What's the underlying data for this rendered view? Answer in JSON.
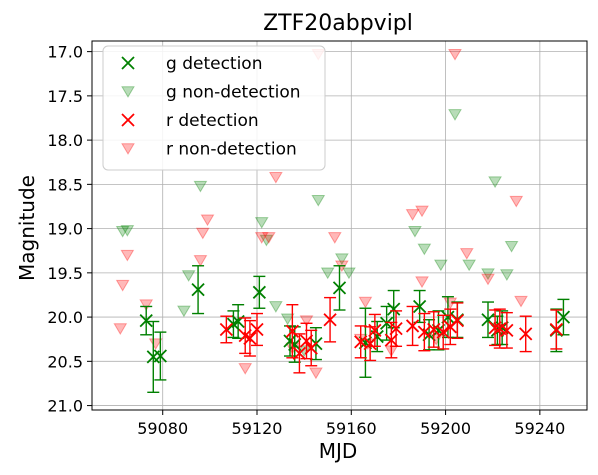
{
  "chart_data": {
    "type": "scatter",
    "title": "ZTF20abpvipl",
    "xlabel": "MJD",
    "ylabel": "Magnitude",
    "xlim": [
      59050,
      59260
    ],
    "ylim": [
      21.05,
      16.88
    ],
    "y_inverted": true,
    "grid": true,
    "legend_position": "top-left",
    "x_ticks": [
      59080,
      59120,
      59160,
      59200,
      59240
    ],
    "y_ticks": [
      17.0,
      17.5,
      18.0,
      18.5,
      19.0,
      19.5,
      20.0,
      20.5,
      21.0
    ],
    "colors": {
      "g": "#008000",
      "r": "#ff0000"
    },
    "legend": [
      {
        "label": "g detection",
        "marker": "x",
        "color": "#008000",
        "alpha": 1
      },
      {
        "label": "g non-detection",
        "marker": "triangle-down",
        "color": "#008000",
        "alpha": 0.25
      },
      {
        "label": "r detection",
        "marker": "x",
        "color": "#ff0000",
        "alpha": 1
      },
      {
        "label": "r non-detection",
        "marker": "triangle-down",
        "color": "#ff0000",
        "alpha": 0.25
      }
    ],
    "series": [
      {
        "name": "g detection",
        "band": "g",
        "kind": "detection",
        "points": [
          {
            "x": 59073,
            "y": 20.04,
            "err": 0.16
          },
          {
            "x": 59076,
            "y": 20.45,
            "err": 0.4
          },
          {
            "x": 59079,
            "y": 20.44,
            "err": 0.27
          },
          {
            "x": 59095,
            "y": 19.69,
            "err": 0.27
          },
          {
            "x": 59110,
            "y": 20.08,
            "err": 0.15
          },
          {
            "x": 59112,
            "y": 20.05,
            "err": 0.19
          },
          {
            "x": 59121,
            "y": 19.72,
            "err": 0.18
          },
          {
            "x": 59134,
            "y": 20.27,
            "err": 0.17
          },
          {
            "x": 59136,
            "y": 20.31,
            "err": 0.2
          },
          {
            "x": 59145,
            "y": 20.3,
            "err": 0.18
          },
          {
            "x": 59155,
            "y": 19.67,
            "err": 0.25
          },
          {
            "x": 59166,
            "y": 20.29,
            "err": 0.39
          },
          {
            "x": 59171,
            "y": 20.22,
            "err": 0.17
          },
          {
            "x": 59175,
            "y": 20.07,
            "err": 0.19
          },
          {
            "x": 59178,
            "y": 19.91,
            "err": 0.21
          },
          {
            "x": 59189,
            "y": 19.88,
            "err": 0.18
          },
          {
            "x": 59193,
            "y": 20.2,
            "err": 0.17
          },
          {
            "x": 59197,
            "y": 20.15,
            "err": 0.22
          },
          {
            "x": 59201,
            "y": 20.0,
            "err": 0.23
          },
          {
            "x": 59205,
            "y": 20.03,
            "err": 0.2
          },
          {
            "x": 59218,
            "y": 20.03,
            "err": 0.2
          },
          {
            "x": 59222,
            "y": 20.15,
            "err": 0.16
          },
          {
            "x": 59224,
            "y": 20.12,
            "err": 0.19
          },
          {
            "x": 59247,
            "y": 20.15,
            "err": 0.24
          },
          {
            "x": 59250,
            "y": 20.0,
            "err": 0.2
          }
        ]
      },
      {
        "name": "g non-detection",
        "band": "g",
        "kind": "non-detection",
        "points": [
          {
            "x": 59063,
            "y": 19.03
          },
          {
            "x": 59065,
            "y": 19.02
          },
          {
            "x": 59089,
            "y": 19.93
          },
          {
            "x": 59091,
            "y": 19.53
          },
          {
            "x": 59096,
            "y": 18.52
          },
          {
            "x": 59122,
            "y": 18.93
          },
          {
            "x": 59124,
            "y": 19.13
          },
          {
            "x": 59128,
            "y": 19.88
          },
          {
            "x": 59133,
            "y": 20.02
          },
          {
            "x": 59140,
            "y": 20.38
          },
          {
            "x": 59146,
            "y": 18.68
          },
          {
            "x": 59150,
            "y": 19.5
          },
          {
            "x": 59156,
            "y": 19.34
          },
          {
            "x": 59159,
            "y": 19.5
          },
          {
            "x": 59187,
            "y": 19.03
          },
          {
            "x": 59191,
            "y": 19.23
          },
          {
            "x": 59198,
            "y": 19.41
          },
          {
            "x": 59204,
            "y": 17.71
          },
          {
            "x": 59210,
            "y": 19.41
          },
          {
            "x": 59218,
            "y": 19.51
          },
          {
            "x": 59221,
            "y": 18.47
          },
          {
            "x": 59226,
            "y": 19.52
          },
          {
            "x": 59228,
            "y": 19.2
          }
        ]
      },
      {
        "name": "r detection",
        "band": "r",
        "kind": "detection",
        "points": [
          {
            "x": 59107,
            "y": 20.14,
            "err": 0.15
          },
          {
            "x": 59115,
            "y": 20.21,
            "err": 0.2
          },
          {
            "x": 59117,
            "y": 20.24,
            "err": 0.2
          },
          {
            "x": 59120,
            "y": 20.14,
            "err": 0.18
          },
          {
            "x": 59135,
            "y": 20.16,
            "err": 0.3
          },
          {
            "x": 59138,
            "y": 20.41,
            "err": 0.22
          },
          {
            "x": 59141,
            "y": 20.27,
            "err": 0.2
          },
          {
            "x": 59143,
            "y": 20.35,
            "err": 0.2
          },
          {
            "x": 59151,
            "y": 20.03,
            "err": 0.25
          },
          {
            "x": 59164,
            "y": 20.28,
            "err": 0.18
          },
          {
            "x": 59168,
            "y": 20.3,
            "err": 0.19
          },
          {
            "x": 59170,
            "y": 20.15,
            "err": 0.18
          },
          {
            "x": 59177,
            "y": 20.26,
            "err": 0.2
          },
          {
            "x": 59179,
            "y": 20.13,
            "err": 0.2
          },
          {
            "x": 59186,
            "y": 20.1,
            "err": 0.22
          },
          {
            "x": 59191,
            "y": 20.17,
            "err": 0.21
          },
          {
            "x": 59195,
            "y": 20.14,
            "err": 0.2
          },
          {
            "x": 59199,
            "y": 20.17,
            "err": 0.19
          },
          {
            "x": 59202,
            "y": 20.11,
            "err": 0.2
          },
          {
            "x": 59205,
            "y": 20.04,
            "err": 0.2
          },
          {
            "x": 59221,
            "y": 20.12,
            "err": 0.2
          },
          {
            "x": 59223,
            "y": 20.13,
            "err": 0.22
          },
          {
            "x": 59226,
            "y": 20.15,
            "err": 0.2
          },
          {
            "x": 59234,
            "y": 20.19,
            "err": 0.2
          },
          {
            "x": 59247,
            "y": 20.14,
            "err": 0.22
          }
        ]
      },
      {
        "name": "r non-detection",
        "band": "r",
        "kind": "non-detection",
        "points": [
          {
            "x": 59062,
            "y": 20.13
          },
          {
            "x": 59063,
            "y": 19.64
          },
          {
            "x": 59065,
            "y": 19.3
          },
          {
            "x": 59073,
            "y": 19.86
          },
          {
            "x": 59077,
            "y": 20.3
          },
          {
            "x": 59096,
            "y": 19.36
          },
          {
            "x": 59097,
            "y": 19.05
          },
          {
            "x": 59099,
            "y": 18.9
          },
          {
            "x": 59115,
            "y": 20.58
          },
          {
            "x": 59122,
            "y": 19.1
          },
          {
            "x": 59125,
            "y": 19.1
          },
          {
            "x": 59128,
            "y": 18.42
          },
          {
            "x": 59135,
            "y": 20.35
          },
          {
            "x": 59141,
            "y": 20.04
          },
          {
            "x": 59145,
            "y": 20.63
          },
          {
            "x": 59146,
            "y": 17.03
          },
          {
            "x": 59153,
            "y": 19.1
          },
          {
            "x": 59156,
            "y": 19.42
          },
          {
            "x": 59164,
            "y": 20.25
          },
          {
            "x": 59166,
            "y": 19.83
          },
          {
            "x": 59167,
            "y": 20.3
          },
          {
            "x": 59177,
            "y": 20.38
          },
          {
            "x": 59186,
            "y": 18.84
          },
          {
            "x": 59190,
            "y": 18.8
          },
          {
            "x": 59190,
            "y": 19.6
          },
          {
            "x": 59196,
            "y": 20.25
          },
          {
            "x": 59202,
            "y": 19.84
          },
          {
            "x": 59204,
            "y": 17.03
          },
          {
            "x": 59209,
            "y": 19.28
          },
          {
            "x": 59218,
            "y": 19.57
          },
          {
            "x": 59230,
            "y": 18.69
          },
          {
            "x": 59232,
            "y": 19.82
          }
        ]
      }
    ]
  }
}
